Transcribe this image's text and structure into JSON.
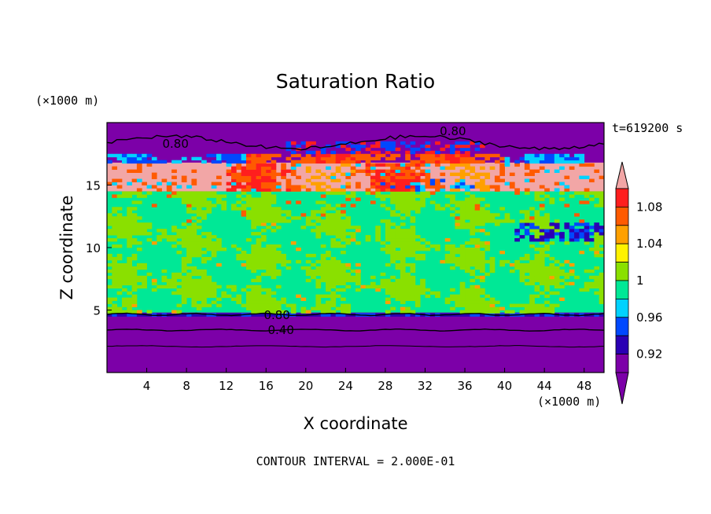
{
  "chart_data": {
    "type": "heatmap",
    "title": "Saturation Ratio",
    "xlabel": "X coordinate",
    "ylabel": "Z coordinate",
    "x_unit": "(×1000 m)",
    "y_unit": "(×1000 m)",
    "time_label": "t=619200 s",
    "footer": "CONTOUR INTERVAL = 2.000E-01",
    "xlim": [
      0,
      50
    ],
    "ylim": [
      0,
      20
    ],
    "x_ticks": [
      4,
      8,
      12,
      16,
      20,
      24,
      28,
      32,
      36,
      40,
      44,
      48
    ],
    "y_ticks": [
      5,
      10,
      15
    ],
    "contour_labels": [
      {
        "text": "0.80",
        "x": 6.9,
        "z": 18.3
      },
      {
        "text": "0.80",
        "x": 34.8,
        "z": 19.3
      },
      {
        "text": "0.80",
        "x": 17.1,
        "z": 4.6
      },
      {
        "text": "0.40",
        "x": 17.5,
        "z": 3.4
      }
    ],
    "colorbar": {
      "levels": [
        "",
        "0.92",
        "",
        "0.96",
        "",
        "1",
        "",
        "1.04",
        "",
        "1.08",
        ""
      ],
      "colors": [
        "#7c00a8",
        "#2a00b4",
        "#0048ff",
        "#00d2ff",
        "#00e896",
        "#8ae000",
        "#fff200",
        "#ffa000",
        "#ff5a00",
        "#ff1e1e",
        "#f2a6a6"
      ]
    },
    "colors": {
      "very_low": "#7c00a8",
      "near_one": "#00e896",
      "slightly_super": "#8ae000",
      "high": "#ff5a00",
      "very_high": "#f2a6a6"
    }
  }
}
